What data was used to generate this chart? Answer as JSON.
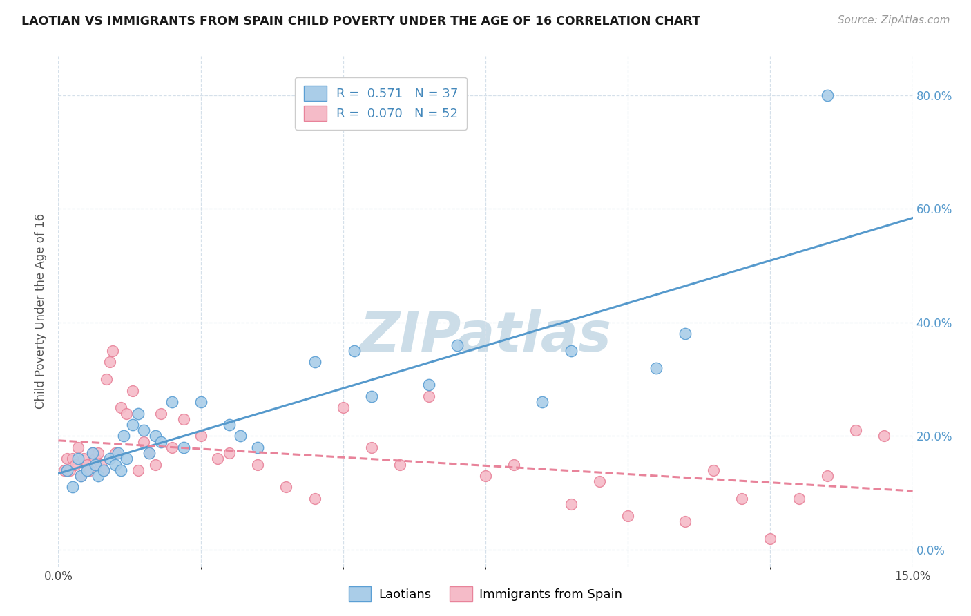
{
  "title": "LAOTIAN VS IMMIGRANTS FROM SPAIN CHILD POVERTY UNDER THE AGE OF 16 CORRELATION CHART",
  "source": "Source: ZipAtlas.com",
  "ylabel": "Child Poverty Under the Age of 16",
  "yticks": [
    "0.0%",
    "20.0%",
    "40.0%",
    "60.0%",
    "80.0%"
  ],
  "ytick_vals": [
    0.0,
    20.0,
    40.0,
    60.0,
    80.0
  ],
  "xmin": 0.0,
  "xmax": 15.0,
  "ymin": -3.0,
  "ymax": 87.0,
  "color_laotian_edge": "#5b9fd4",
  "color_laotian_fill": "#aacde8",
  "color_spain_edge": "#e8839a",
  "color_spain_fill": "#f5bbc8",
  "color_line_laotian": "#5599cc",
  "color_line_spain": "#e8839a",
  "color_ytick": "#5599cc",
  "watermark_color": "#ccdde8",
  "laotian_x": [
    0.15,
    0.25,
    0.35,
    0.4,
    0.5,
    0.6,
    0.65,
    0.7,
    0.8,
    0.9,
    1.0,
    1.05,
    1.1,
    1.15,
    1.2,
    1.3,
    1.4,
    1.5,
    1.6,
    1.7,
    1.8,
    2.0,
    2.2,
    2.5,
    3.0,
    3.2,
    3.5,
    4.5,
    5.2,
    5.5,
    6.5,
    7.0,
    8.5,
    9.0,
    10.5,
    11.0,
    13.5
  ],
  "laotian_y": [
    14,
    11,
    16,
    13,
    14,
    17,
    15,
    13,
    14,
    16,
    15,
    17,
    14,
    20,
    16,
    22,
    24,
    21,
    17,
    20,
    19,
    26,
    18,
    26,
    22,
    20,
    18,
    33,
    35,
    27,
    29,
    36,
    26,
    35,
    32,
    38,
    80
  ],
  "spain_x": [
    0.1,
    0.15,
    0.2,
    0.25,
    0.3,
    0.35,
    0.4,
    0.45,
    0.5,
    0.55,
    0.6,
    0.65,
    0.7,
    0.75,
    0.8,
    0.85,
    0.9,
    0.95,
    1.0,
    1.1,
    1.2,
    1.3,
    1.4,
    1.5,
    1.6,
    1.7,
    1.8,
    2.0,
    2.2,
    2.5,
    2.8,
    3.0,
    3.5,
    4.0,
    4.5,
    5.0,
    5.5,
    6.0,
    6.5,
    7.5,
    8.0,
    9.0,
    9.5,
    10.0,
    11.0,
    11.5,
    12.0,
    12.5,
    13.0,
    13.5,
    14.0,
    14.5
  ],
  "spain_y": [
    14,
    16,
    14,
    16,
    15,
    18,
    13,
    16,
    15,
    14,
    17,
    16,
    17,
    15,
    14,
    30,
    33,
    35,
    17,
    25,
    24,
    28,
    14,
    19,
    17,
    15,
    24,
    18,
    23,
    20,
    16,
    17,
    15,
    11,
    9,
    25,
    18,
    15,
    27,
    13,
    15,
    8,
    12,
    6,
    5,
    14,
    9,
    2,
    9,
    13,
    21,
    20
  ],
  "grid_x_minor": [
    2.5,
    5.0,
    7.5,
    10.0,
    12.5
  ],
  "grid_color": "#d5e0ea",
  "legend1_label": "R =  0.571   N = 37",
  "legend2_label": "R =  0.070   N = 52"
}
